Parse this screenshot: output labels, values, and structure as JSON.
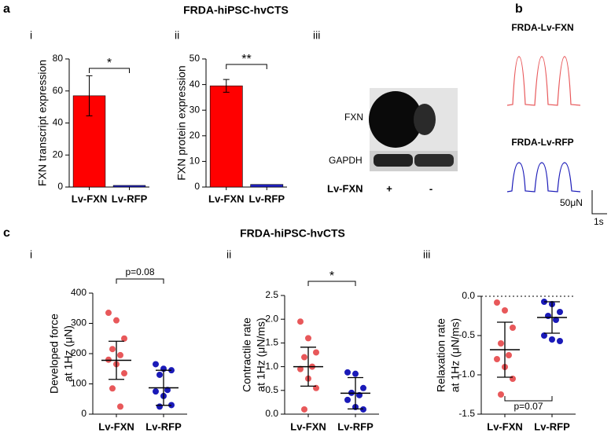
{
  "panel_letters": [
    "a",
    "b",
    "c"
  ],
  "titles": [
    "FRDA-hiPSC-hvCTS",
    "FRDA-hiPSC-hvCTS"
  ],
  "subpanel_labels": [
    "i",
    "ii",
    "iii",
    "i",
    "ii",
    "iii"
  ],
  "blot": {
    "rows": [
      "FXN",
      "GAPDH"
    ],
    "condition": "Lv-FXN",
    "signs": [
      "+",
      "-"
    ]
  },
  "traces": {
    "labels": [
      "FRDA-Lv-FXN",
      "FRDA-Lv-RFP"
    ],
    "scale_force": "50μN",
    "scale_time": "1s"
  },
  "chart_data": [
    {
      "type": "bar",
      "ylabel": [
        "FXN transcript expression"
      ],
      "categories": [
        "Lv-FXN",
        "Lv-RFP"
      ],
      "values": [
        57,
        1
      ],
      "errors": [
        12.5,
        null
      ],
      "colors": [
        "#ff0000",
        "#2020c0"
      ],
      "ylim": [
        0,
        80
      ],
      "yticks": [
        0,
        20,
        40,
        60,
        80
      ],
      "annotation": "*"
    },
    {
      "type": "bar",
      "ylabel": [
        "FXN protein expression"
      ],
      "categories": [
        "Lv-FXN",
        "Lv-RFP"
      ],
      "values": [
        39.5,
        1
      ],
      "errors": [
        2.5,
        null
      ],
      "colors": [
        "#ff0000",
        "#2020c0"
      ],
      "ylim": [
        0,
        50
      ],
      "yticks": [
        0,
        10,
        20,
        30,
        40,
        50
      ],
      "annotation": "**"
    },
    {
      "type": "dot_plot",
      "ylabel": [
        "Developed force",
        "at 1Hz (μN)"
      ],
      "groups": [
        {
          "name": "Lv-FXN",
          "color": "#e8585a",
          "values": [
            335,
            310,
            250,
            215,
            195,
            180,
            165,
            135,
            85,
            25
          ],
          "mean": 178,
          "sd": 63
        },
        {
          "name": "Lv-RFP",
          "color": "#1a1ab8",
          "values": [
            165,
            150,
            145,
            130,
            80,
            75,
            60,
            30,
            25
          ],
          "mean": 87,
          "sd": 58
        }
      ],
      "ylim": [
        0,
        400
      ],
      "yticks": [
        0,
        100,
        200,
        300,
        400
      ],
      "annotation": "p=0.08"
    },
    {
      "type": "dot_plot",
      "ylabel": [
        "Contractile rate",
        "at 1Hz (μN/ms)"
      ],
      "groups": [
        {
          "name": "Lv-FXN",
          "color": "#e8585a",
          "values": [
            1.95,
            1.6,
            1.3,
            1.2,
            1.0,
            0.95,
            0.75,
            0.55,
            0.1
          ],
          "mean": 1.0,
          "sd": 0.41
        },
        {
          "name": "Lv-RFP",
          "color": "#1a1ab8",
          "values": [
            0.88,
            0.85,
            0.55,
            0.45,
            0.4,
            0.3,
            0.15,
            0.1
          ],
          "mean": 0.44,
          "sd": 0.33
        }
      ],
      "ylim": [
        0,
        2.5
      ],
      "yticks": [
        {
          "value": 0,
          "label": "0.0"
        },
        0.5,
        {
          "value": 1,
          "label": "1.0"
        },
        1.5,
        {
          "value": 2,
          "label": "2.0"
        },
        2.5
      ],
      "annotation": "*"
    },
    {
      "type": "dot_plot",
      "ylabel": [
        "Relaxation rate",
        "at 1Hz (μN/ms)"
      ],
      "groups": [
        {
          "name": "Lv-FXN",
          "color": "#e8585a",
          "values": [
            -0.08,
            -0.18,
            -0.4,
            -0.6,
            -0.75,
            -0.8,
            -0.9,
            -1.05,
            -1.25
          ],
          "mean": -0.68,
          "sd": 0.35
        },
        {
          "name": "Lv-RFP",
          "color": "#1a1ab8",
          "values": [
            -0.07,
            -0.1,
            -0.2,
            -0.25,
            -0.3,
            -0.5,
            -0.55,
            -0.57
          ],
          "mean": -0.27,
          "sd": 0.2
        }
      ],
      "ylim": [
        -1.5,
        0
      ],
      "yticks": [
        -1.5,
        {
          "value": -1,
          "label": "-1.0"
        },
        -0.5,
        {
          "value": 0,
          "label": "0.0"
        }
      ],
      "zero_line": true,
      "annotation": "p=0.07"
    }
  ]
}
